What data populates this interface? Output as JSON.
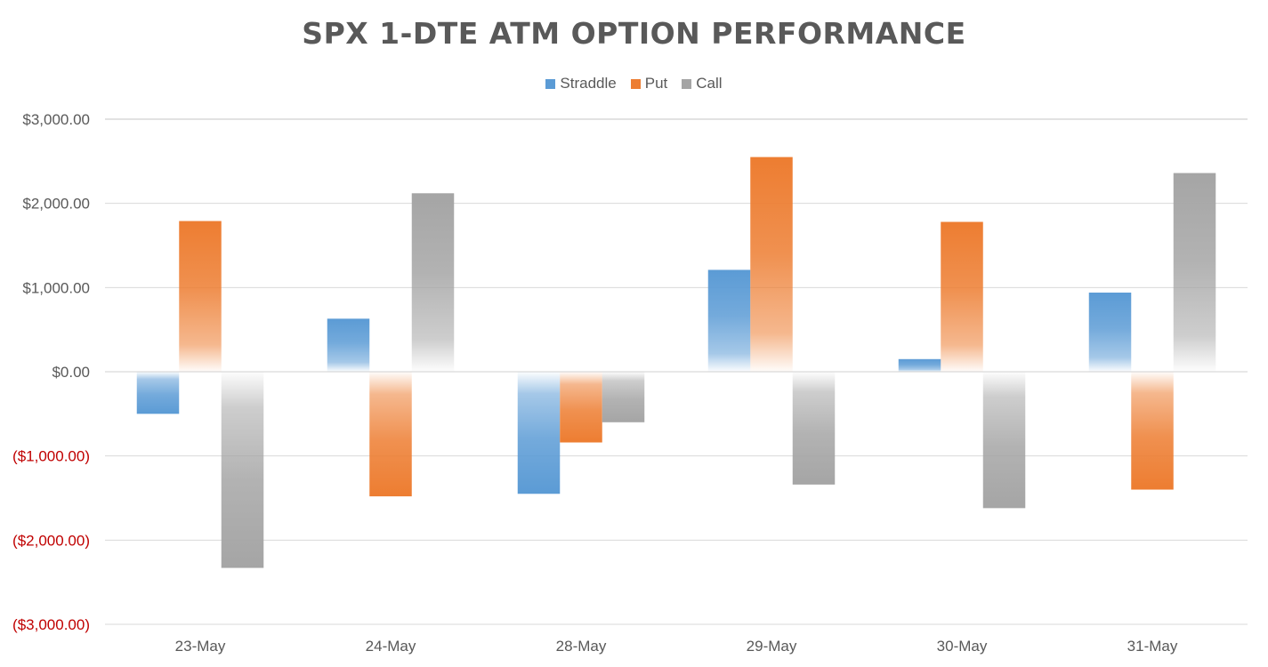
{
  "chart_data": {
    "type": "bar",
    "title": "SPX 1-DTE ATM OPTION PERFORMANCE",
    "categories": [
      "23-May",
      "24-May",
      "28-May",
      "29-May",
      "30-May",
      "31-May"
    ],
    "series": [
      {
        "name": "Straddle",
        "color": "#5B9BD5",
        "values": [
          -500,
          630,
          -1450,
          1210,
          150,
          940
        ]
      },
      {
        "name": "Put",
        "color": "#ED7D31",
        "values": [
          1790,
          -1480,
          -840,
          2550,
          1780,
          -1400
        ]
      },
      {
        "name": "Call",
        "color": "#A5A5A5",
        "values": [
          -2330,
          2120,
          -600,
          -1340,
          -1620,
          2360
        ]
      }
    ],
    "ylim": [
      -3000,
      3000
    ],
    "yticks": [
      3000,
      2000,
      1000,
      0,
      -1000,
      -2000,
      -3000
    ],
    "ytick_labels": [
      "$3,000.00",
      "$2,000.00",
      "$1,000.00",
      "$0.00",
      "($1,000.00)",
      "($2,000.00)",
      "($3,000.00)"
    ],
    "negative_label_color": "#C00000",
    "positive_label_color": "#595959",
    "grid": true,
    "legend_position": "top-center",
    "bar_style": "gradient fading toward zero line"
  }
}
